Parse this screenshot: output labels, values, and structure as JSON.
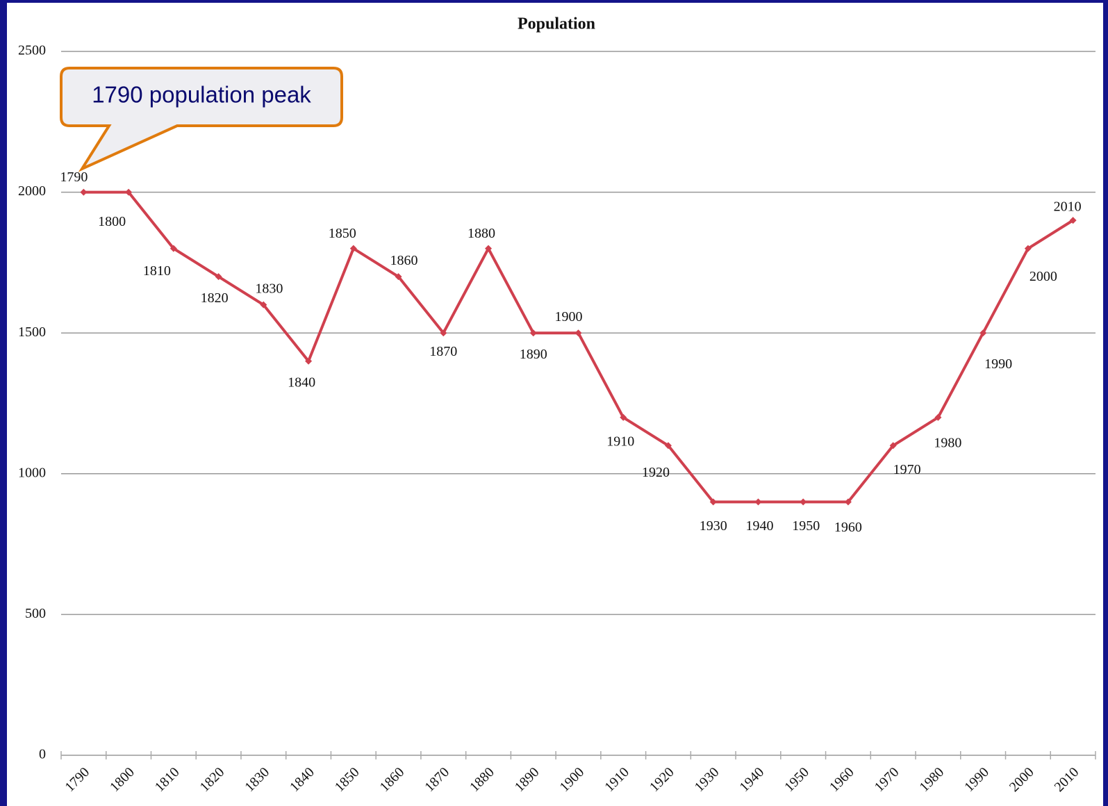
{
  "chart_data": {
    "type": "line",
    "title": "Population",
    "categories": [
      "1790",
      "1800",
      "1810",
      "1820",
      "1830",
      "1840",
      "1850",
      "1860",
      "1870",
      "1880",
      "1890",
      "1900",
      "1910",
      "1920",
      "1930",
      "1940",
      "1950",
      "1960",
      "1970",
      "1980",
      "1990",
      "2000",
      "2010"
    ],
    "series": [
      {
        "name": "Population",
        "color": "#d0404e",
        "values": [
          2000,
          2000,
          1800,
          1700,
          1600,
          1400,
          1800,
          1700,
          1500,
          1800,
          1500,
          1500,
          1200,
          1100,
          900,
          900,
          900,
          900,
          1100,
          1200,
          1500,
          1800,
          1900
        ]
      }
    ],
    "ylim": [
      0,
      2500
    ],
    "yticks": [
      0,
      500,
      1000,
      1500,
      2000,
      2500
    ],
    "grid": true,
    "annotation": "1790 population peak"
  }
}
